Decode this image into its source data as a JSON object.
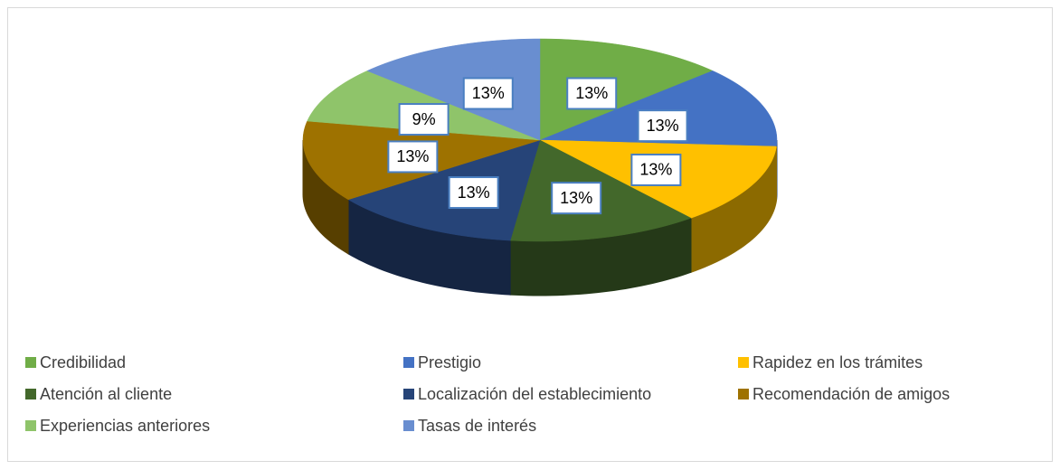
{
  "chart_data": {
    "type": "pie",
    "3d": true,
    "categories": [
      "Credibilidad",
      "Prestigio",
      "Rapidez en los trámites",
      "Atención al cliente",
      "Localización del establecimiento",
      "Recomendación de amigos",
      "Experiencias anteriores",
      "Tasas de interés"
    ],
    "values": [
      13,
      13,
      13,
      13,
      13,
      13,
      9,
      13
    ],
    "value_labels": [
      "13%",
      "13%",
      "13%",
      "13%",
      "13%",
      "13%",
      "9%",
      "13%"
    ],
    "colors": [
      "#70ad47",
      "#4472c4",
      "#ffc000",
      "#43682b",
      "#264478",
      "#9e7200",
      "#8fc46a",
      "#698ed0"
    ],
    "legend": "bottom"
  }
}
